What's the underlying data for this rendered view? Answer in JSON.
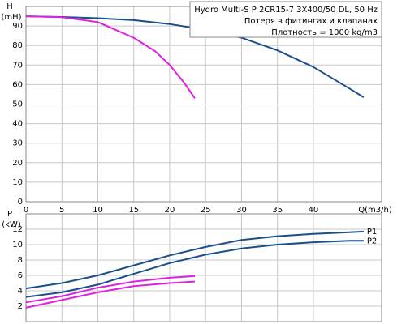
{
  "chart_data": [
    {
      "type": "line",
      "ylabel": "H",
      "yunit": "(mH)",
      "xlabel": "Q(m3/h)",
      "annotations": [
        "Hydro Multi-S P 2CR15-7 3X400/50 DL, 50 Hz",
        "Потеря в фитингах и клапанах",
        "Плотность = 1000 kg/m3"
      ],
      "xlim": [
        0,
        49.5
      ],
      "ylim": [
        0,
        100
      ],
      "xticks": [
        0,
        5,
        10,
        15,
        20,
        25,
        30,
        35,
        40
      ],
      "yticks": [
        0,
        10,
        20,
        30,
        40,
        50,
        60,
        70,
        80,
        90
      ],
      "xtick_labels": true,
      "grid": true,
      "series": [
        {
          "color": "#1a4f8a",
          "x": [
            0,
            5,
            10,
            15,
            20,
            25,
            30,
            35,
            40,
            45,
            47
          ],
          "values": [
            95,
            94.6,
            94,
            93,
            91,
            88,
            84,
            77.5,
            69,
            58,
            53.5
          ]
        },
        {
          "color": "#e020e0",
          "x": [
            0,
            5,
            10,
            15,
            18,
            20,
            22,
            23.5
          ],
          "values": [
            95,
            94.5,
            92,
            84,
            77,
            70,
            61,
            53
          ]
        }
      ]
    },
    {
      "type": "line",
      "ylabel": "P",
      "yunit": "(kW)",
      "xlim": [
        0,
        49.5
      ],
      "ylim": [
        0,
        14
      ],
      "xticks": [
        0,
        5,
        10,
        15,
        20,
        25,
        30,
        35,
        40
      ],
      "yticks": [
        2,
        4,
        6,
        8,
        10,
        12
      ],
      "xtick_labels": false,
      "grid": true,
      "series": [
        {
          "name": "P1",
          "color": "#1a4f8a",
          "x": [
            0,
            5,
            10,
            15,
            20,
            25,
            30,
            35,
            40,
            45,
            47
          ],
          "values": [
            4.3,
            5.0,
            6.0,
            7.3,
            8.6,
            9.7,
            10.6,
            11.1,
            11.4,
            11.6,
            11.7
          ]
        },
        {
          "name": "P2",
          "color": "#1a4f8a",
          "x": [
            0,
            5,
            10,
            15,
            20,
            25,
            30,
            35,
            40,
            45,
            47
          ],
          "values": [
            3.2,
            3.8,
            4.8,
            6.2,
            7.6,
            8.7,
            9.5,
            10.0,
            10.3,
            10.5,
            10.5
          ]
        },
        {
          "color": "#e020e0",
          "x": [
            0,
            5,
            10,
            15,
            20,
            23.5
          ],
          "values": [
            2.5,
            3.3,
            4.4,
            5.2,
            5.7,
            5.9
          ]
        },
        {
          "color": "#e020e0",
          "x": [
            0,
            5,
            10,
            15,
            20,
            23.5
          ],
          "values": [
            1.8,
            2.8,
            3.8,
            4.6,
            5.0,
            5.2
          ]
        }
      ]
    }
  ]
}
